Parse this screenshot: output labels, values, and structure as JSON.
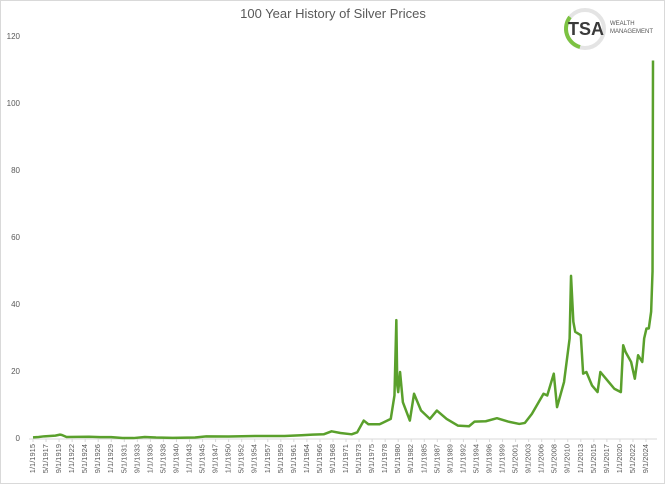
{
  "chart_data": {
    "type": "line",
    "title": "100 Year History of Silver Prices",
    "logo": {
      "name": "TSA",
      "line1": "WEALTH",
      "line2": "MANAGEMENT"
    },
    "color": "#5aa02c",
    "grid": false,
    "x": [
      "1/1/1915",
      "1/1/1916",
      "1/1/1917",
      "1/1/1918",
      "1/1/1919",
      "11/1/1919",
      "3/1/1920",
      "1/1/1921",
      "1/1/1923",
      "1/1/1925",
      "1/1/1927",
      "1/1/1929",
      "1/1/1931",
      "1/1/1933",
      "1/1/1935",
      "1/1/1937",
      "1/1/1940",
      "1/1/1944",
      "1/1/1946",
      "1/1/1950",
      "1/1/1955",
      "1/1/1960",
      "1/1/1963",
      "1/1/1965",
      "1/1/1967",
      "6/1/1968",
      "1/1/1970",
      "1/1/1972",
      "1/1/1973",
      "3/1/1974",
      "1/1/1975",
      "1/1/1977",
      "1/1/1979",
      "9/1/1979",
      "1/1/1980",
      "3/1/1980",
      "5/1/1980",
      "9/1/1980",
      "3/1/1981",
      "6/1/1982",
      "3/1/1983",
      "6/1/1984",
      "1/1/1986",
      "4/1/1987",
      "1/1/1989",
      "1/1/1991",
      "1/1/1993",
      "1/1/1994",
      "1/1/1996",
      "1/1/1998",
      "1/1/2000",
      "1/1/2002",
      "1/1/2003",
      "4/1/2004",
      "5/1/2006",
      "1/1/2007",
      "3/1/2008",
      "10/1/2008",
      "1/1/2010",
      "1/1/2011",
      "4/1/2011",
      "9/1/2011",
      "1/1/2012",
      "1/1/2013",
      "6/1/2013",
      "1/1/2014",
      "1/1/2015",
      "1/1/2016",
      "7/1/2016",
      "1/1/2018",
      "1/1/2019",
      "3/1/2020",
      "8/1/2020",
      "1/1/2021",
      "1/1/2022",
      "9/1/2022",
      "4/1/2023",
      "1/1/2024",
      "5/1/2024",
      "10/1/2024",
      "3/1/2025",
      "8/1/2025",
      "11/1/2025",
      "12/1/2025"
    ],
    "values": [
      0.5,
      0.6,
      0.8,
      0.9,
      1.0,
      1.3,
      1.2,
      0.6,
      0.65,
      0.69,
      0.56,
      0.56,
      0.3,
      0.28,
      0.6,
      0.45,
      0.35,
      0.45,
      0.8,
      0.75,
      0.9,
      0.91,
      1.1,
      1.29,
      1.4,
      2.3,
      1.8,
      1.4,
      2.0,
      5.5,
      4.4,
      4.4,
      6.0,
      13,
      35.5,
      16,
      14,
      20,
      11,
      5.5,
      13.5,
      8.5,
      6,
      8.5,
      6,
      4,
      3.8,
      5.2,
      5.3,
      6.2,
      5.2,
      4.5,
      4.8,
      7.5,
      13.5,
      13,
      19.5,
      9.5,
      17,
      30,
      48.7,
      35,
      32,
      31,
      19.5,
      20,
      16,
      14,
      20,
      17,
      15,
      14,
      28,
      26,
      23,
      18,
      25,
      23,
      30,
      33,
      33,
      38,
      50,
      113
    ],
    "xlim": [
      "1/1/1915",
      "12/1/2025"
    ],
    "xticks": [
      "1/1/1915",
      "5/1/1917",
      "9/1/1919",
      "1/1/1922",
      "5/1/1924",
      "9/1/1926",
      "1/1/1929",
      "5/1/1931",
      "9/1/1933",
      "1/1/1936",
      "5/1/1938",
      "9/1/1940",
      "1/1/1943",
      "5/1/1945",
      "9/1/1947",
      "1/1/1950",
      "5/1/1952",
      "9/1/1954",
      "1/1/1957",
      "5/1/1959",
      "9/1/1961",
      "1/1/1964",
      "5/1/1966",
      "9/1/1968",
      "1/1/1971",
      "5/1/1973",
      "9/1/1975",
      "1/1/1978",
      "5/1/1980",
      "9/1/1982",
      "1/1/1985",
      "5/1/1987",
      "9/1/1989",
      "1/1/1992",
      "5/1/1994",
      "9/1/1996",
      "1/1/1999",
      "5/1/2001",
      "9/1/2003",
      "1/1/2006",
      "5/1/2008",
      "9/1/2010",
      "1/1/2013",
      "5/1/2015",
      "9/1/2017",
      "1/1/2020",
      "5/1/2022",
      "9/1/2024"
    ],
    "ylim": [
      0,
      120
    ],
    "yticks": [
      0,
      20,
      40,
      60,
      80,
      100,
      120
    ]
  }
}
